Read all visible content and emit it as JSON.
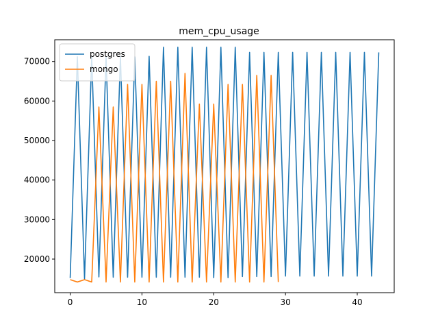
{
  "chart_data": {
    "type": "line",
    "title": "mem_cpu_usage",
    "xlabel": "",
    "ylabel": "",
    "xlim": [
      -2.15,
      45.15
    ],
    "ylim": [
      11500,
      75500
    ],
    "xticks": [
      0,
      10,
      20,
      30,
      40
    ],
    "yticks": [
      20000,
      30000,
      40000,
      50000,
      60000,
      70000
    ],
    "grid": false,
    "legend": "top-left",
    "series": [
      {
        "name": "postgres",
        "color": "#1f77b4",
        "x": [
          0,
          1,
          2,
          3,
          4,
          5,
          6,
          7,
          8,
          9,
          10,
          11,
          12,
          13,
          14,
          15,
          16,
          17,
          18,
          19,
          20,
          21,
          22,
          23,
          24,
          25,
          26,
          27,
          28,
          29,
          30,
          31,
          32,
          33,
          34,
          35,
          36,
          37,
          38,
          39,
          40,
          41,
          42,
          43
        ],
        "values": [
          15200,
          71200,
          15000,
          71200,
          15500,
          71200,
          15400,
          71200,
          15400,
          71200,
          15400,
          71300,
          15400,
          73600,
          15400,
          73600,
          15400,
          73600,
          15400,
          73600,
          15300,
          73600,
          15300,
          73600,
          15600,
          72300,
          15600,
          72300,
          15600,
          72300,
          15700,
          72300,
          15700,
          72300,
          15700,
          72300,
          15700,
          72300,
          15700,
          72300,
          15700,
          72300,
          15700,
          72300
        ]
      },
      {
        "name": "mongo",
        "color": "#ff7f0e",
        "x": [
          0,
          1,
          2,
          3,
          4,
          5,
          6,
          7,
          8,
          9,
          10,
          11,
          12,
          13,
          14,
          15,
          16,
          17,
          18,
          19,
          20,
          21,
          22,
          23,
          24,
          25,
          26,
          27,
          28,
          29
        ],
        "values": [
          14800,
          14200,
          14800,
          14200,
          58500,
          14200,
          58500,
          14200,
          64200,
          14200,
          64200,
          14200,
          65000,
          14200,
          65000,
          14200,
          67000,
          14200,
          59200,
          14200,
          59200,
          14200,
          64200,
          14200,
          64200,
          14200,
          66500,
          14200,
          66500,
          14200
        ]
      }
    ]
  }
}
